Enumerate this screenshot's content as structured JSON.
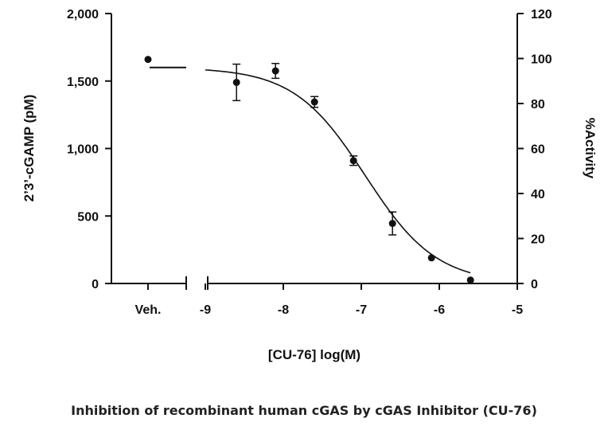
{
  "caption": "Inhibition of recombinant human cGAS by cGAS Inhibitor (CU-76)",
  "chart_data": {
    "type": "scatter",
    "xlabel": "[CU-76] log(M)",
    "ylabel_left": "2’3’-cGAMP (pM)",
    "ylabel_right": "%Activity",
    "xlim": [
      -9,
      -5
    ],
    "ylim_left": [
      0,
      2000
    ],
    "ylim_right": [
      0,
      120
    ],
    "x_ticks": [
      "-9",
      "-8",
      "-7",
      "-6",
      "-5"
    ],
    "y_ticks_left": [
      "0",
      "500",
      "1,000",
      "1,500",
      "2,000"
    ],
    "y_ticks_right": [
      "0",
      "20",
      "40",
      "60",
      "80",
      "100",
      "120"
    ],
    "vehicle": {
      "label": "Veh.",
      "value": 1660,
      "error": 15
    },
    "points": [
      {
        "x": -8.6,
        "y": 1490,
        "err": 135
      },
      {
        "x": -8.1,
        "y": 1575,
        "err": 55
      },
      {
        "x": -7.6,
        "y": 1345,
        "err": 40
      },
      {
        "x": -7.1,
        "y": 910,
        "err": 35
      },
      {
        "x": -6.6,
        "y": 445,
        "err": 85
      },
      {
        "x": -6.1,
        "y": 190,
        "err": 0
      },
      {
        "x": -5.6,
        "y": 25,
        "err": 0
      }
    ],
    "fit": {
      "top": 1600,
      "bottom": 0,
      "log_ic50": -6.95,
      "hill": -0.95
    },
    "grid": false
  }
}
